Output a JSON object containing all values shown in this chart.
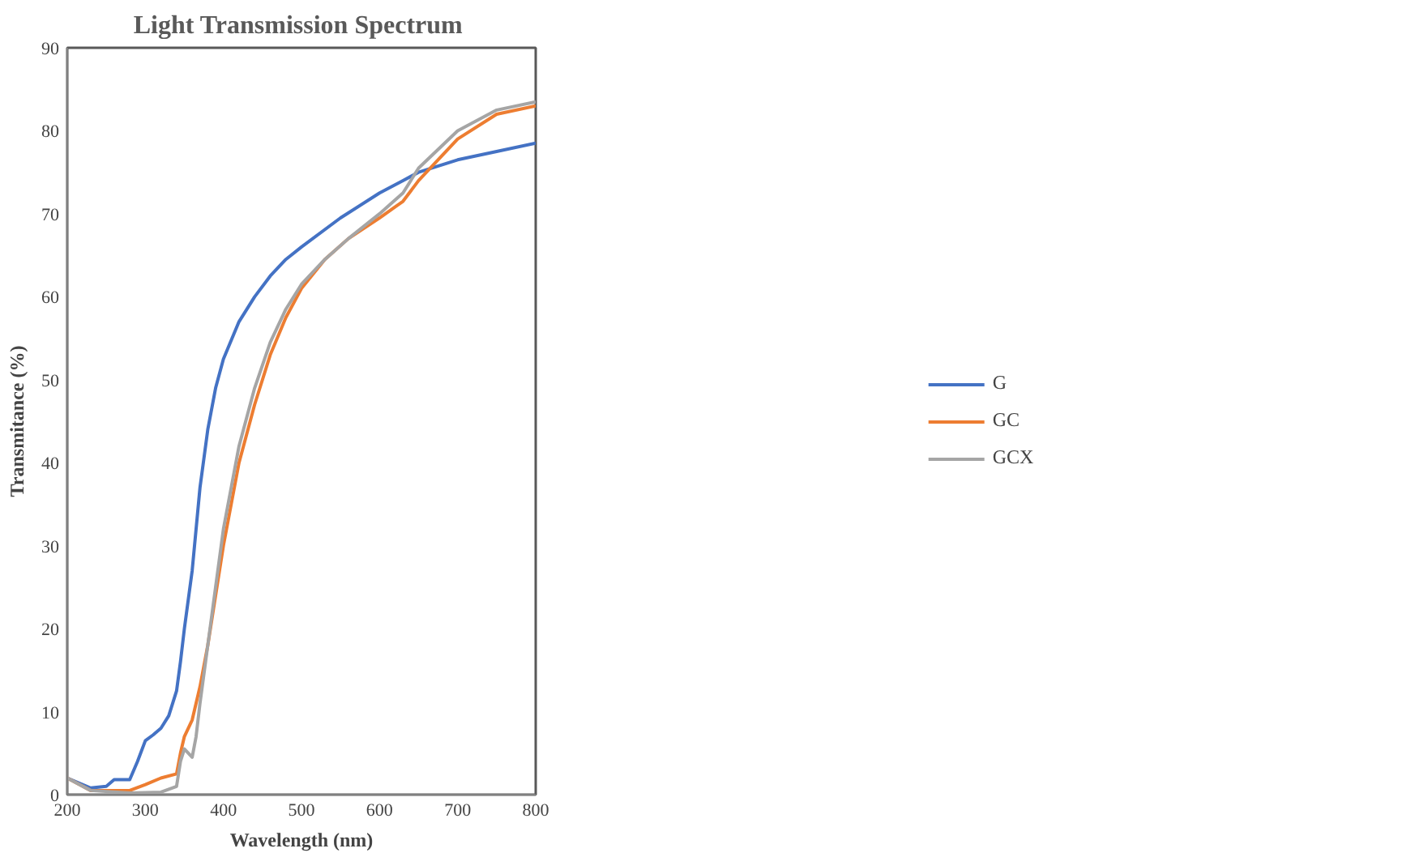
{
  "chart_data": {
    "type": "line",
    "title": "Light Transmission  Spectrum",
    "xlabel": "Wavelength (nm)",
    "ylabel": "Transmitance (%)",
    "xlim": [
      200,
      800
    ],
    "xticks": [
      200,
      300,
      400,
      500,
      600,
      700,
      800
    ],
    "ylim": [
      0,
      90
    ],
    "yticks": [
      0,
      10,
      20,
      30,
      40,
      50,
      60,
      70,
      80,
      90
    ],
    "grid": false,
    "legend": "right",
    "line_style": "solid",
    "marker": "none",
    "series": [
      {
        "name": "G",
        "color": "#4472c4",
        "x": [
          200,
          230,
          250,
          260,
          280,
          290,
          300,
          310,
          320,
          330,
          340,
          345,
          350,
          360,
          370,
          380,
          390,
          400,
          420,
          440,
          460,
          480,
          500,
          550,
          600,
          630,
          650,
          700,
          750,
          800
        ],
        "values": [
          2,
          0.8,
          1,
          1.8,
          1.8,
          4,
          6.5,
          7.2,
          8,
          9.5,
          12.5,
          16,
          20,
          27,
          37,
          44,
          49,
          52.5,
          57,
          60,
          62.5,
          64.5,
          66,
          69.5,
          72.5,
          74,
          75,
          76.5,
          77.5,
          78.5
        ]
      },
      {
        "name": "GC",
        "color": "#ed7d31",
        "x": [
          200,
          230,
          280,
          300,
          320,
          340,
          345,
          350,
          360,
          370,
          380,
          390,
          400,
          420,
          440,
          460,
          480,
          500,
          530,
          560,
          600,
          630,
          650,
          700,
          750,
          800
        ],
        "values": [
          2,
          0.5,
          0.5,
          1.2,
          2,
          2.5,
          5,
          7,
          9,
          13,
          18,
          24,
          30,
          40,
          47,
          53,
          57.5,
          61,
          64.5,
          67,
          69.5,
          71.5,
          74,
          79,
          82,
          83
        ]
      },
      {
        "name": "GCX",
        "color": "#a5a5a5",
        "x": [
          200,
          230,
          280,
          320,
          340,
          345,
          350,
          360,
          365,
          370,
          380,
          390,
          400,
          420,
          440,
          460,
          480,
          500,
          530,
          560,
          600,
          630,
          650,
          700,
          750,
          800
        ],
        "values": [
          2,
          0.5,
          0.2,
          0.3,
          1,
          4,
          5.5,
          4.5,
          7,
          11,
          18,
          25,
          32,
          42,
          49,
          54.5,
          58.5,
          61.5,
          64.5,
          67,
          70,
          72.5,
          75.5,
          80,
          82.5,
          83.5
        ]
      }
    ]
  }
}
